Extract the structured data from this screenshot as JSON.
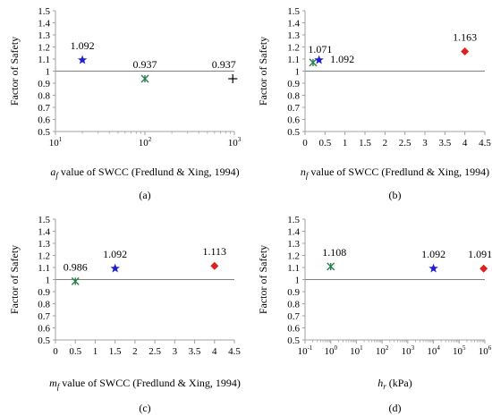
{
  "colors": {
    "blue": "#1f1fd0",
    "green": "#2e7d4f",
    "red": "#e02020",
    "black": "#000000",
    "reference_line": "#808080",
    "axis": "#a0a0a0"
  },
  "chart_data": [
    {
      "type": "scatter",
      "panel_label": "(a)",
      "ylabel": "Factor of Safety",
      "xlabel_italic": "a",
      "xlabel_sub": "f",
      "xlabel_rest": " value of SWCC (Fredlund & Xing, 1994)",
      "xscale": "log",
      "xlim": [
        10,
        1000
      ],
      "xticks": [
        {
          "value": 10,
          "base": "10",
          "exp": "1"
        },
        {
          "value": 100,
          "base": "10",
          "exp": "2"
        },
        {
          "value": 1000,
          "base": "10",
          "exp": "3"
        }
      ],
      "ylim": [
        0.5,
        1.5
      ],
      "yticks": [
        "0.5",
        "0.6",
        "0.7",
        "0.8",
        "0.9",
        "1",
        "1.1",
        "1.2",
        "1.3",
        "1.4",
        "1.5"
      ],
      "reference_line": 1,
      "points": [
        {
          "x": 20,
          "y": 1.092,
          "label": "1.092",
          "marker": "star",
          "color": "blue",
          "label_dx": 0,
          "label_dy": -12
        },
        {
          "x": 100,
          "y": 0.937,
          "label": "0.937",
          "marker": "asterisk",
          "color": "green",
          "label_dx": 0,
          "label_dy": -12
        },
        {
          "x": 960,
          "y": 0.937,
          "label": "0.937",
          "marker": "plus",
          "color": "black",
          "label_dx": -10,
          "label_dy": -12
        }
      ]
    },
    {
      "type": "scatter",
      "panel_label": "(b)",
      "ylabel": "Factor of Safety",
      "xlabel_italic": "n",
      "xlabel_sub": "f",
      "xlabel_rest": " value of SWCC (Fredlund & Xing, 1994)",
      "xscale": "linear",
      "xlim": [
        0,
        4.5
      ],
      "xticks": [
        {
          "value": 0,
          "label": "0"
        },
        {
          "value": 0.5,
          "label": "0.5"
        },
        {
          "value": 1,
          "label": "1"
        },
        {
          "value": 1.5,
          "label": "1.5"
        },
        {
          "value": 2,
          "label": "2"
        },
        {
          "value": 2.5,
          "label": "2.5"
        },
        {
          "value": 3,
          "label": "3"
        },
        {
          "value": 3.5,
          "label": "3.5"
        },
        {
          "value": 4,
          "label": "4"
        },
        {
          "value": 4.5,
          "label": "4.5"
        }
      ],
      "ylim": [
        0.5,
        1.5
      ],
      "yticks": [
        "0.5",
        "0.6",
        "0.7",
        "0.8",
        "0.9",
        "1",
        "1.1",
        "1.2",
        "1.3",
        "1.4",
        "1.5"
      ],
      "reference_line": 1,
      "points": [
        {
          "x": 0.2,
          "y": 1.071,
          "label": "1.071",
          "marker": "asterisk",
          "color": "green",
          "label_dx": 8,
          "label_dy": -11
        },
        {
          "x": 0.35,
          "y": 1.092,
          "label": "1.092",
          "marker": "star",
          "color": "blue",
          "label_dx": 26,
          "label_dy": 3
        },
        {
          "x": 4.0,
          "y": 1.163,
          "label": "1.163",
          "marker": "diamond",
          "color": "red",
          "label_dx": 0,
          "label_dy": -12
        }
      ]
    },
    {
      "type": "scatter",
      "panel_label": "(c)",
      "ylabel": "Factor of Safety",
      "xlabel_italic": "m",
      "xlabel_sub": "f",
      "xlabel_rest": " value of SWCC (Fredlund & Xing, 1994)",
      "xscale": "linear",
      "xlim": [
        0,
        4.5
      ],
      "xticks": [
        {
          "value": 0,
          "label": "0"
        },
        {
          "value": 0.5,
          "label": "0.5"
        },
        {
          "value": 1,
          "label": "1"
        },
        {
          "value": 1.5,
          "label": "1.5"
        },
        {
          "value": 2,
          "label": "2"
        },
        {
          "value": 2.5,
          "label": "2.5"
        },
        {
          "value": 3,
          "label": "3"
        },
        {
          "value": 3.5,
          "label": "3.5"
        },
        {
          "value": 4,
          "label": "4"
        },
        {
          "value": 4.5,
          "label": "4.5"
        }
      ],
      "ylim": [
        0.5,
        1.5
      ],
      "yticks": [
        "0.5",
        "0.6",
        "0.7",
        "0.8",
        "0.9",
        "1",
        "1.1",
        "1.2",
        "1.3",
        "1.4",
        "1.5"
      ],
      "reference_line": 1,
      "points": [
        {
          "x": 0.5,
          "y": 0.986,
          "label": "0.986",
          "marker": "asterisk",
          "color": "green",
          "label_dx": 0,
          "label_dy": -12
        },
        {
          "x": 1.5,
          "y": 1.092,
          "label": "1.092",
          "marker": "star",
          "color": "blue",
          "label_dx": 0,
          "label_dy": -12
        },
        {
          "x": 4.0,
          "y": 1.113,
          "label": "1.113",
          "marker": "diamond",
          "color": "red",
          "label_dx": 0,
          "label_dy": -12
        }
      ]
    },
    {
      "type": "scatter",
      "panel_label": "(d)",
      "ylabel": "Factor of Safety",
      "xlabel_italic": "h",
      "xlabel_sub": "r",
      "xlabel_rest": " (kPa)",
      "xscale": "log",
      "xlim": [
        0.1,
        1000000
      ],
      "xticks": [
        {
          "value": 0.1,
          "base": "10",
          "exp": "-1"
        },
        {
          "value": 1,
          "base": "10",
          "exp": "0"
        },
        {
          "value": 10,
          "base": "10",
          "exp": "1"
        },
        {
          "value": 100,
          "base": "10",
          "exp": "2"
        },
        {
          "value": 1000,
          "base": "10",
          "exp": "3"
        },
        {
          "value": 10000,
          "base": "10",
          "exp": "4"
        },
        {
          "value": 100000,
          "base": "10",
          "exp": "5"
        },
        {
          "value": 1000000,
          "base": "10",
          "exp": "6"
        }
      ],
      "ylim": [
        0.5,
        1.5
      ],
      "yticks": [
        "0.5",
        "0.6",
        "0.7",
        "0.8",
        "0.9",
        "1",
        "1.1",
        "1.2",
        "1.3",
        "1.4",
        "1.5"
      ],
      "reference_line": 1,
      "points": [
        {
          "x": 1,
          "y": 1.108,
          "label": "1.108",
          "marker": "asterisk",
          "color": "green",
          "label_dx": 4,
          "label_dy": -12
        },
        {
          "x": 10000,
          "y": 1.092,
          "label": "1.092",
          "marker": "star",
          "color": "blue",
          "label_dx": 0,
          "label_dy": -12
        },
        {
          "x": 900000,
          "y": 1.091,
          "label": "1.091",
          "marker": "diamond",
          "color": "red",
          "label_dx": -4,
          "label_dy": -12
        }
      ]
    }
  ]
}
